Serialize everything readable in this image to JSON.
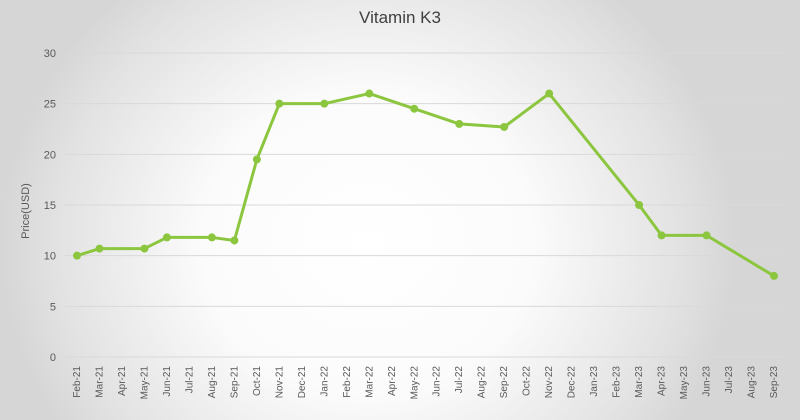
{
  "chart_data": {
    "type": "line",
    "title": "Vitamin K3",
    "xlabel": "",
    "ylabel": "Price(USD)",
    "ylim": [
      0,
      30
    ],
    "yticks": [
      0,
      5,
      10,
      15,
      20,
      25,
      30
    ],
    "grid": true,
    "categories": [
      "Feb-21",
      "Mar-21",
      "Apr-21",
      "May-21",
      "Jun-21",
      "Jul-21",
      "Aug-21",
      "Sep-21",
      "Oct-21",
      "Nov-21",
      "Dec-21",
      "Jan-22",
      "Feb-22",
      "Mar-22",
      "Apr-22",
      "May-22",
      "Jun-22",
      "Jul-22",
      "Aug-22",
      "Sep-22",
      "Oct-22",
      "Nov-22",
      "Dec-22",
      "Jan-23",
      "Feb-23",
      "Mar-23",
      "Apr-23",
      "May-23",
      "Jun-23",
      "Jul-23",
      "Aug-23",
      "Sep-23"
    ],
    "series": [
      {
        "name": "Vitamin K3",
        "color": "#8cc63f",
        "points": [
          {
            "x": "Feb-21",
            "y": 10
          },
          {
            "x": "Mar-21",
            "y": 10.7
          },
          {
            "x": "May-21",
            "y": 10.7
          },
          {
            "x": "Jun-21",
            "y": 11.8
          },
          {
            "x": "Aug-21",
            "y": 11.8
          },
          {
            "x": "Sep-21",
            "y": 11.5
          },
          {
            "x": "Oct-21",
            "y": 19.5
          },
          {
            "x": "Nov-21",
            "y": 25
          },
          {
            "x": "Jan-22",
            "y": 25
          },
          {
            "x": "Mar-22",
            "y": 26
          },
          {
            "x": "May-22",
            "y": 24.5
          },
          {
            "x": "Jul-22",
            "y": 23
          },
          {
            "x": "Sep-22",
            "y": 22.7
          },
          {
            "x": "Nov-22",
            "y": 26
          },
          {
            "x": "Mar-23",
            "y": 15
          },
          {
            "x": "Apr-23",
            "y": 12
          },
          {
            "x": "Jun-23",
            "y": 12
          },
          {
            "x": "Sep-23",
            "y": 8
          }
        ]
      }
    ]
  }
}
